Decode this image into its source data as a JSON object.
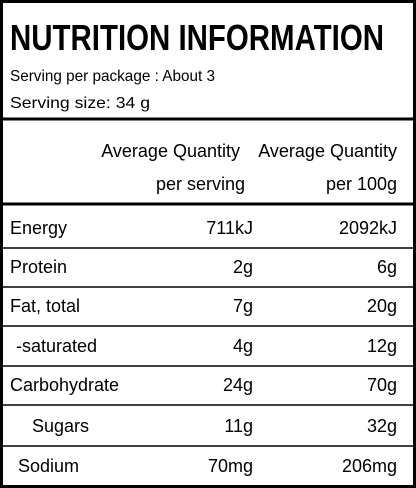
{
  "header": {
    "title": "NUTRITION INFORMATION"
  },
  "serving": {
    "per_package": "Serving per package : About 3",
    "size": "Serving size: 34 g"
  },
  "table": {
    "headers": [
      [
        "Average Quantity",
        "per serving"
      ],
      [
        "Average Quantity",
        "per 100g"
      ]
    ],
    "rows": [
      [
        "Energy",
        "711kJ",
        "2092kJ"
      ],
      [
        "Protein",
        "2g",
        "6g"
      ],
      [
        "Fat, total",
        "7g",
        "20g"
      ],
      [
        "-saturated",
        "4g",
        "12g"
      ],
      [
        "Carbohydrate",
        "24g",
        "70g"
      ],
      [
        "Sugars",
        "11g",
        "32g"
      ],
      [
        "Sodium",
        "70mg",
        "206mg"
      ]
    ]
  }
}
